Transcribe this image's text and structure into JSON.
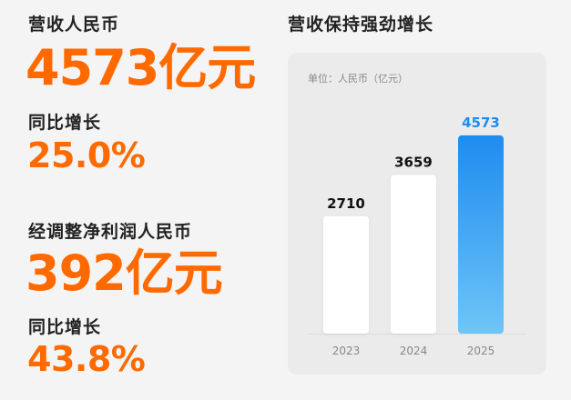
{
  "left_panel": {
    "revenue_label": "营收人民币",
    "revenue_value": "4573亿元",
    "revenue_yoy_label": "同比增长",
    "revenue_yoy_value": "25.0%",
    "net_profit_label": "经调整净利润人民币",
    "net_profit_value": "392亿元",
    "net_profit_yoy_label": "同比增长",
    "net_profit_yoy_value": "43.8%"
  },
  "chart_heading": "营收保持强劲增长",
  "unit_label": "单位：人民币（亿元）",
  "chart_data": {
    "type": "bar",
    "title": "营收保持强劲增长",
    "subtitle": "单位：人民币（亿元）",
    "categories": [
      "2023",
      "2024",
      "2025"
    ],
    "values": [
      2710,
      3659,
      4573
    ],
    "data_labels": [
      "2710",
      "3659",
      "4573"
    ],
    "xlabel": "",
    "ylabel": "",
    "ylim": [
      0,
      5200
    ],
    "grid": false,
    "legend": "none",
    "highlight_index": 2,
    "colors": {
      "default_bar": "#ffffff",
      "highlight_top": "#1e8cf0",
      "highlight_bottom": "#6ec5f7",
      "default_label": "#111111",
      "highlight_label": "#1e8cf0",
      "axis_line": "#dddddd",
      "tick_label": "#888888"
    }
  },
  "colors": {
    "accent": "#ff6a00",
    "background": "#f4f4f4",
    "panel": "#ebebeb"
  }
}
